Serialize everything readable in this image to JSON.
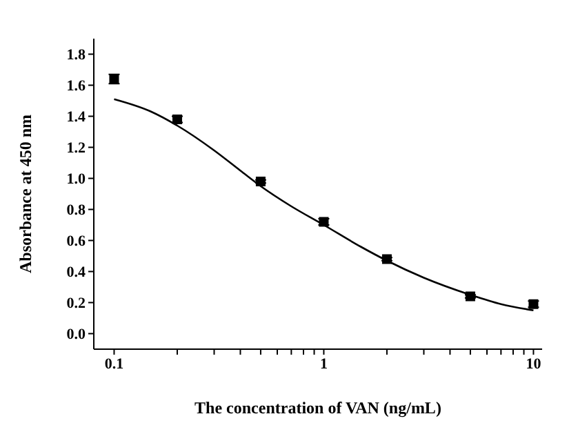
{
  "chart_data": {
    "type": "scatter",
    "xlabel": "The concentration of VAN (ng/mL)",
    "ylabel": "Absorbance at 450 nm",
    "log": "x",
    "xlim": [
      0.08,
      11
    ],
    "xticks": [
      0.1,
      {
        "value": 0.2,
        "label": null
      },
      {
        "value": 0.3,
        "label": null
      },
      {
        "value": 0.4,
        "label": null
      },
      {
        "value": 0.5,
        "label": null
      },
      {
        "value": 0.6,
        "label": null
      },
      {
        "value": 0.7,
        "label": null
      },
      {
        "value": 0.8,
        "label": null
      },
      {
        "value": 0.9,
        "label": null
      },
      1,
      {
        "value": 2,
        "label": null
      },
      {
        "value": 3,
        "label": null
      },
      {
        "value": 4,
        "label": null
      },
      {
        "value": 5,
        "label": null
      },
      {
        "value": 6,
        "label": null
      },
      {
        "value": 7,
        "label": null
      },
      {
        "value": 8,
        "label": null
      },
      {
        "value": 9,
        "label": null
      },
      10
    ],
    "ylim": [
      -0.1,
      1.9
    ],
    "yticks": [
      {
        "value": 0,
        "label": "0.0"
      },
      0.2,
      0.4,
      0.6,
      0.8,
      {
        "value": 1,
        "label": "1.0"
      },
      1.2,
      1.4,
      1.6,
      1.8
    ],
    "grid": false,
    "legend": false,
    "marker": "square",
    "series": [
      {
        "color": "#000000",
        "x": [
          0.1,
          0.2,
          0.5,
          1,
          2,
          5,
          10
        ],
        "values": [
          1.64,
          1.38,
          0.98,
          0.72,
          0.48,
          0.24,
          0.19
        ],
        "errors": [
          0.03,
          0.02,
          0.01,
          0.02,
          0.01,
          0.01,
          0.02
        ]
      },
      {
        "type": "line",
        "color": "#000000",
        "marker": "none",
        "line_style": "solid",
        "x": [
          0.1,
          0.15,
          0.2,
          0.3,
          0.4,
          0.5,
          0.7,
          1,
          1.5,
          2,
          3,
          5,
          7,
          10
        ],
        "values": [
          1.51,
          1.43,
          1.34,
          1.18,
          1.05,
          0.95,
          0.82,
          0.7,
          0.56,
          0.47,
          0.36,
          0.25,
          0.19,
          0.15
        ]
      }
    ]
  }
}
